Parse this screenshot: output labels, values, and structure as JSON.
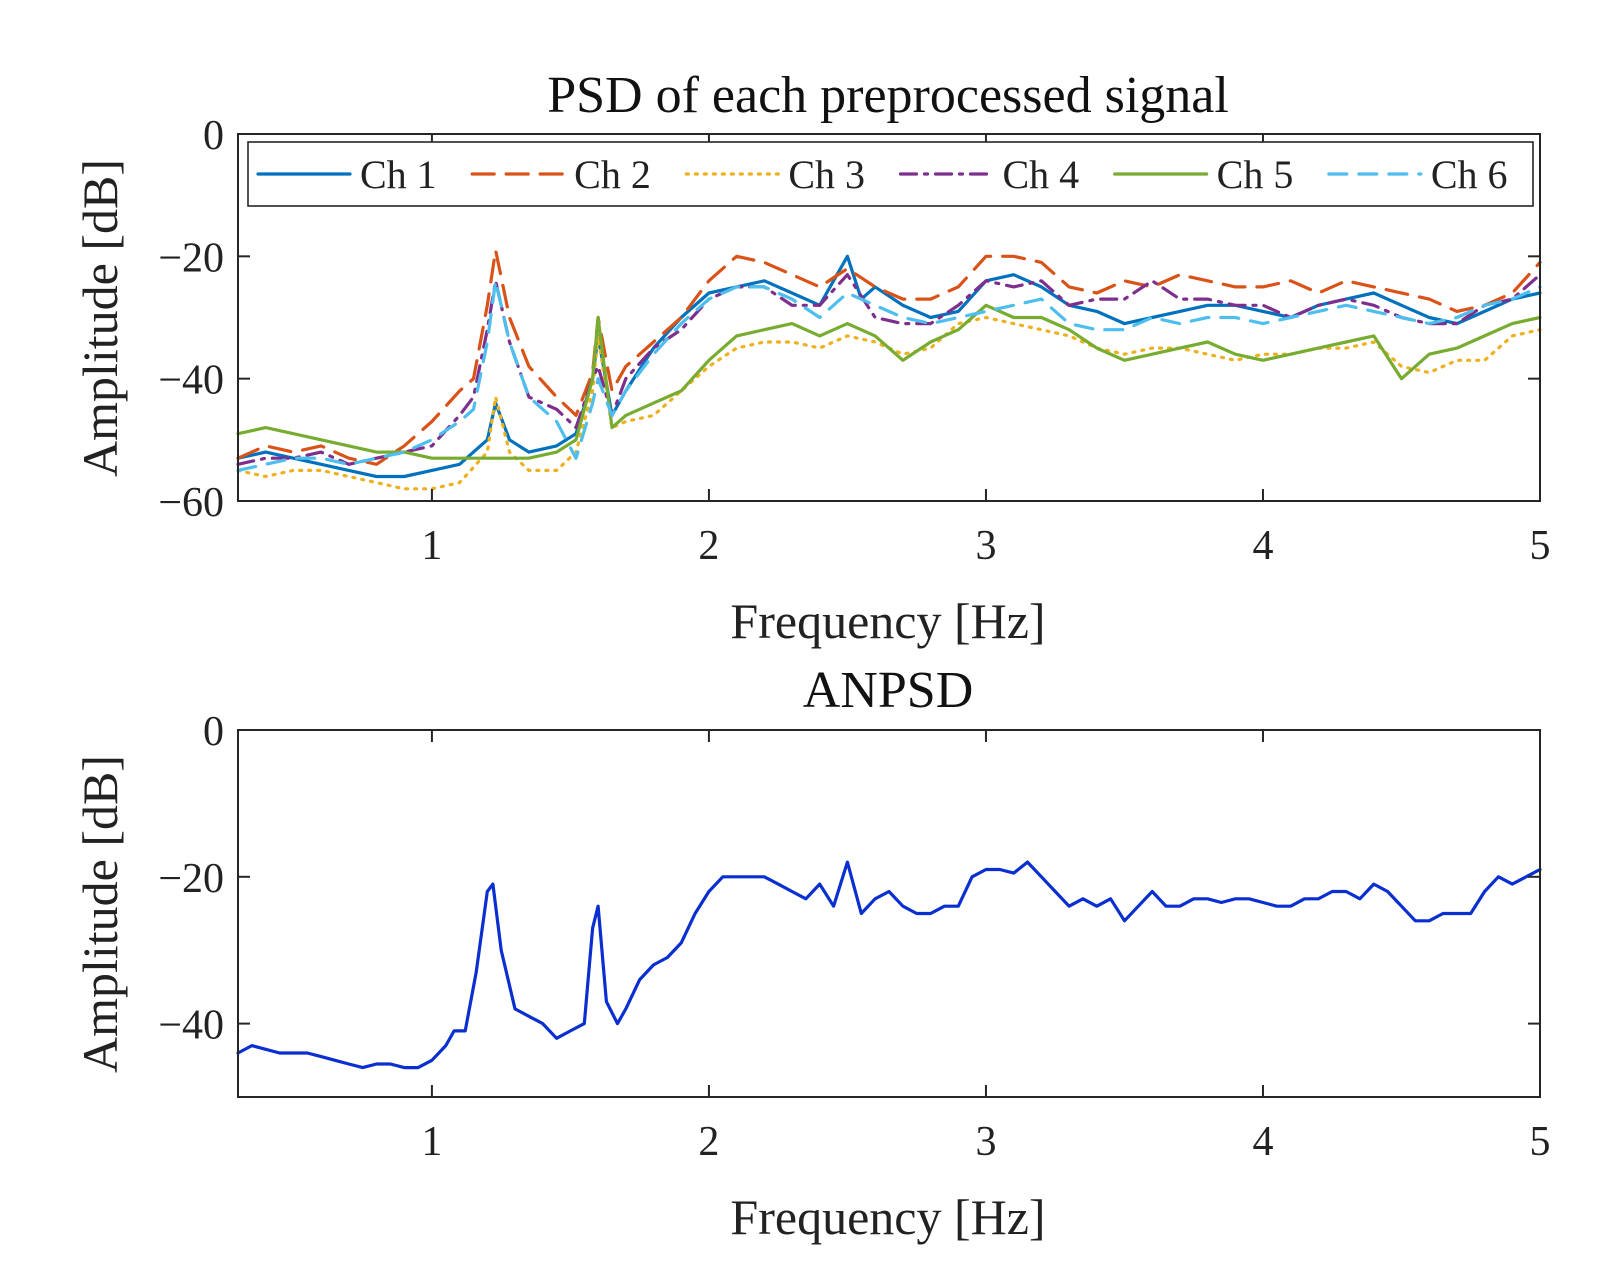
{
  "chart_data": [
    {
      "type": "line",
      "title": "PSD of each preprocessed signal",
      "xlabel": "Frequency [Hz]",
      "ylabel": "Amplitude [dB]",
      "xlim": [
        0.3,
        5
      ],
      "ylim": [
        -60,
        0
      ],
      "xticks": [
        1,
        2,
        3,
        4,
        5
      ],
      "yticks": [
        0,
        -20,
        -40,
        -60
      ],
      "legend_position": "top",
      "series": [
        {
          "name": "Ch 1",
          "color": "#0072BD",
          "dash": "solid",
          "x": [
            0.3,
            0.4,
            0.5,
            0.6,
            0.7,
            0.8,
            0.9,
            1.0,
            1.1,
            1.2,
            1.23,
            1.28,
            1.35,
            1.45,
            1.52,
            1.58,
            1.6,
            1.65,
            1.7,
            1.8,
            1.9,
            2.0,
            2.1,
            2.2,
            2.3,
            2.4,
            2.5,
            2.55,
            2.6,
            2.7,
            2.8,
            2.9,
            3.0,
            3.1,
            3.2,
            3.3,
            3.4,
            3.5,
            3.6,
            3.7,
            3.8,
            3.9,
            4.0,
            4.1,
            4.2,
            4.3,
            4.4,
            4.5,
            4.6,
            4.7,
            4.8,
            4.9,
            5.0
          ],
          "y": [
            -53,
            -52,
            -53,
            -54,
            -55,
            -56,
            -56,
            -55,
            -54,
            -50,
            -44,
            -50,
            -52,
            -51,
            -49,
            -40,
            -33,
            -46,
            -42,
            -35,
            -30,
            -26,
            -25,
            -24,
            -26,
            -28,
            -20,
            -27,
            -25,
            -28,
            -30,
            -29,
            -24,
            -23,
            -25,
            -28,
            -29,
            -31,
            -30,
            -29,
            -28,
            -28,
            -29,
            -30,
            -28,
            -27,
            -26,
            -28,
            -30,
            -31,
            -29,
            -27,
            -26
          ]
        },
        {
          "name": "Ch 2",
          "color": "#D95319",
          "dash": "long-dash",
          "x": [
            0.3,
            0.4,
            0.5,
            0.6,
            0.7,
            0.8,
            0.9,
            1.0,
            1.1,
            1.15,
            1.2,
            1.23,
            1.28,
            1.35,
            1.45,
            1.52,
            1.58,
            1.6,
            1.65,
            1.7,
            1.8,
            1.9,
            2.0,
            2.1,
            2.2,
            2.3,
            2.4,
            2.5,
            2.6,
            2.7,
            2.8,
            2.9,
            3.0,
            3.1,
            3.2,
            3.3,
            3.4,
            3.5,
            3.6,
            3.7,
            3.8,
            3.9,
            4.0,
            4.1,
            4.2,
            4.3,
            4.4,
            4.5,
            4.6,
            4.7,
            4.8,
            4.9,
            5.0
          ],
          "y": [
            -53,
            -51,
            -52,
            -51,
            -53,
            -54,
            -51,
            -47,
            -42,
            -40,
            -28,
            -19,
            -30,
            -38,
            -43,
            -46,
            -39,
            -30,
            -42,
            -38,
            -34,
            -30,
            -24,
            -20,
            -21,
            -23,
            -25,
            -22,
            -25,
            -27,
            -27,
            -25,
            -20,
            -20,
            -21,
            -25,
            -26,
            -24,
            -25,
            -23,
            -24,
            -25,
            -25,
            -24,
            -26,
            -24,
            -25,
            -26,
            -27,
            -29,
            -28,
            -26,
            -21
          ]
        },
        {
          "name": "Ch 3",
          "color": "#EDB120",
          "dash": "dotted",
          "x": [
            0.3,
            0.4,
            0.5,
            0.6,
            0.7,
            0.8,
            0.9,
            1.0,
            1.1,
            1.2,
            1.23,
            1.28,
            1.35,
            1.45,
            1.52,
            1.58,
            1.6,
            1.65,
            1.7,
            1.8,
            1.9,
            2.0,
            2.1,
            2.2,
            2.3,
            2.4,
            2.5,
            2.6,
            2.7,
            2.8,
            2.9,
            3.0,
            3.1,
            3.2,
            3.3,
            3.4,
            3.5,
            3.6,
            3.7,
            3.8,
            3.9,
            4.0,
            4.1,
            4.2,
            4.3,
            4.4,
            4.5,
            4.6,
            4.7,
            4.8,
            4.9,
            5.0
          ],
          "y": [
            -55,
            -56,
            -55,
            -55,
            -56,
            -57,
            -58,
            -58,
            -57,
            -52,
            -43,
            -52,
            -55,
            -55,
            -52,
            -42,
            -33,
            -48,
            -47,
            -46,
            -42,
            -38,
            -35,
            -34,
            -34,
            -35,
            -33,
            -34,
            -36,
            -35,
            -31,
            -30,
            -31,
            -32,
            -33,
            -35,
            -36,
            -35,
            -35,
            -36,
            -37,
            -36,
            -36,
            -35,
            -35,
            -34,
            -38,
            -39,
            -37,
            -37,
            -33,
            -32
          ]
        },
        {
          "name": "Ch 4",
          "color": "#7E2F8E",
          "dash": "dash-dot",
          "x": [
            0.3,
            0.4,
            0.5,
            0.6,
            0.7,
            0.8,
            0.9,
            1.0,
            1.1,
            1.15,
            1.2,
            1.23,
            1.28,
            1.35,
            1.45,
            1.52,
            1.58,
            1.6,
            1.65,
            1.7,
            1.8,
            1.9,
            2.0,
            2.1,
            2.2,
            2.3,
            2.4,
            2.5,
            2.6,
            2.7,
            2.8,
            2.9,
            3.0,
            3.1,
            3.2,
            3.3,
            3.4,
            3.5,
            3.6,
            3.7,
            3.8,
            3.9,
            4.0,
            4.1,
            4.2,
            4.3,
            4.4,
            4.5,
            4.6,
            4.7,
            4.8,
            4.9,
            5.0
          ],
          "y": [
            -54,
            -53,
            -53,
            -52,
            -54,
            -53,
            -52,
            -51,
            -46,
            -43,
            -32,
            -24,
            -34,
            -43,
            -45,
            -48,
            -40,
            -38,
            -46,
            -40,
            -35,
            -32,
            -27,
            -25,
            -25,
            -28,
            -28,
            -23,
            -30,
            -31,
            -31,
            -28,
            -24,
            -25,
            -24,
            -28,
            -27,
            -27,
            -24,
            -27,
            -27,
            -28,
            -28,
            -30,
            -28,
            -27,
            -28,
            -30,
            -31,
            -31,
            -28,
            -27,
            -23
          ]
        },
        {
          "name": "Ch 5",
          "color": "#77AC30",
          "dash": "solid",
          "x": [
            0.3,
            0.4,
            0.5,
            0.6,
            0.7,
            0.8,
            0.9,
            1.0,
            1.1,
            1.2,
            1.23,
            1.28,
            1.35,
            1.45,
            1.52,
            1.58,
            1.6,
            1.65,
            1.7,
            1.8,
            1.9,
            2.0,
            2.1,
            2.2,
            2.3,
            2.4,
            2.5,
            2.6,
            2.7,
            2.8,
            2.9,
            3.0,
            3.1,
            3.2,
            3.3,
            3.4,
            3.5,
            3.6,
            3.7,
            3.8,
            3.9,
            4.0,
            4.1,
            4.2,
            4.3,
            4.4,
            4.5,
            4.6,
            4.7,
            4.8,
            4.9,
            5.0
          ],
          "y": [
            -49,
            -48,
            -49,
            -50,
            -51,
            -52,
            -52,
            -53,
            -53,
            -53,
            -53,
            -53,
            -53,
            -52,
            -50,
            -40,
            -30,
            -48,
            -46,
            -44,
            -42,
            -37,
            -33,
            -32,
            -31,
            -33,
            -31,
            -33,
            -37,
            -34,
            -32,
            -28,
            -30,
            -30,
            -32,
            -35,
            -37,
            -36,
            -35,
            -34,
            -36,
            -37,
            -36,
            -35,
            -34,
            -33,
            -40,
            -36,
            -35,
            -33,
            -31,
            -30
          ]
        },
        {
          "name": "Ch 6",
          "color": "#4DBEEE",
          "dash": "dashed",
          "x": [
            0.3,
            0.4,
            0.5,
            0.6,
            0.7,
            0.8,
            0.9,
            1.0,
            1.1,
            1.15,
            1.2,
            1.23,
            1.28,
            1.35,
            1.45,
            1.52,
            1.58,
            1.6,
            1.65,
            1.7,
            1.8,
            1.9,
            2.0,
            2.1,
            2.2,
            2.3,
            2.4,
            2.5,
            2.6,
            2.7,
            2.8,
            2.9,
            3.0,
            3.1,
            3.2,
            3.3,
            3.4,
            3.5,
            3.6,
            3.7,
            3.8,
            3.9,
            4.0,
            4.1,
            4.2,
            4.3,
            4.4,
            4.5,
            4.6,
            4.7,
            4.8,
            4.9,
            5.0
          ],
          "y": [
            -55,
            -54,
            -53,
            -53,
            -54,
            -53,
            -52,
            -50,
            -47,
            -45,
            -34,
            -24,
            -34,
            -43,
            -47,
            -53,
            -44,
            -40,
            -46,
            -42,
            -36,
            -31,
            -27,
            -25,
            -25,
            -27,
            -30,
            -26,
            -28,
            -30,
            -31,
            -30,
            -29,
            -28,
            -27,
            -31,
            -32,
            -32,
            -30,
            -31,
            -30,
            -30,
            -31,
            -30,
            -29,
            -28,
            -29,
            -30,
            -31,
            -30,
            -28,
            -27,
            -25
          ]
        }
      ]
    },
    {
      "type": "line",
      "title": "ANPSD",
      "xlabel": "Frequency [Hz]",
      "ylabel": "Amplitude [dB]",
      "xlim": [
        0.3,
        5
      ],
      "ylim": [
        -50,
        0
      ],
      "xticks": [
        1,
        2,
        3,
        4,
        5
      ],
      "yticks": [
        0,
        -20,
        -40
      ],
      "series": [
        {
          "name": "ANPSD",
          "color": "#0A2FD0",
          "dash": "solid",
          "x": [
            0.3,
            0.35,
            0.4,
            0.45,
            0.5,
            0.55,
            0.6,
            0.65,
            0.7,
            0.75,
            0.8,
            0.85,
            0.9,
            0.95,
            1.0,
            1.05,
            1.08,
            1.12,
            1.16,
            1.2,
            1.22,
            1.25,
            1.3,
            1.35,
            1.4,
            1.45,
            1.5,
            1.55,
            1.58,
            1.6,
            1.63,
            1.67,
            1.7,
            1.75,
            1.8,
            1.85,
            1.9,
            1.95,
            2.0,
            2.05,
            2.1,
            2.15,
            2.2,
            2.25,
            2.3,
            2.35,
            2.4,
            2.45,
            2.5,
            2.55,
            2.6,
            2.65,
            2.7,
            2.75,
            2.8,
            2.85,
            2.9,
            2.95,
            3.0,
            3.05,
            3.1,
            3.15,
            3.2,
            3.25,
            3.3,
            3.35,
            3.4,
            3.45,
            3.5,
            3.55,
            3.6,
            3.65,
            3.7,
            3.75,
            3.8,
            3.85,
            3.9,
            3.95,
            4.0,
            4.05,
            4.1,
            4.15,
            4.2,
            4.25,
            4.3,
            4.35,
            4.4,
            4.45,
            4.5,
            4.55,
            4.6,
            4.65,
            4.7,
            4.75,
            4.8,
            4.85,
            4.9,
            4.95,
            5.0
          ],
          "y": [
            -44,
            -43,
            -43.5,
            -44,
            -44,
            -44,
            -44.5,
            -45,
            -45.5,
            -46,
            -45.5,
            -45.5,
            -46,
            -46,
            -45,
            -43,
            -41,
            -41,
            -33,
            -22,
            -21,
            -30,
            -38,
            -39,
            -40,
            -42,
            -41,
            -40,
            -27,
            -24,
            -37,
            -40,
            -38,
            -34,
            -32,
            -31,
            -29,
            -25,
            -22,
            -20,
            -20,
            -20,
            -20,
            -21,
            -22,
            -23,
            -21,
            -24,
            -18,
            -25,
            -23,
            -22,
            -24,
            -25,
            -25,
            -24,
            -24,
            -20,
            -19,
            -19,
            -19.5,
            -18,
            -20,
            -22,
            -24,
            -23,
            -24,
            -23,
            -26,
            -24,
            -22,
            -24,
            -24,
            -23,
            -23,
            -23.5,
            -23,
            -23,
            -23.5,
            -24,
            -24,
            -23,
            -23,
            -22,
            -22,
            -23,
            -21,
            -22,
            -24,
            -26,
            -26,
            -25,
            -25,
            -25,
            -22,
            -20,
            -21,
            -20,
            -19
          ]
        }
      ]
    }
  ]
}
